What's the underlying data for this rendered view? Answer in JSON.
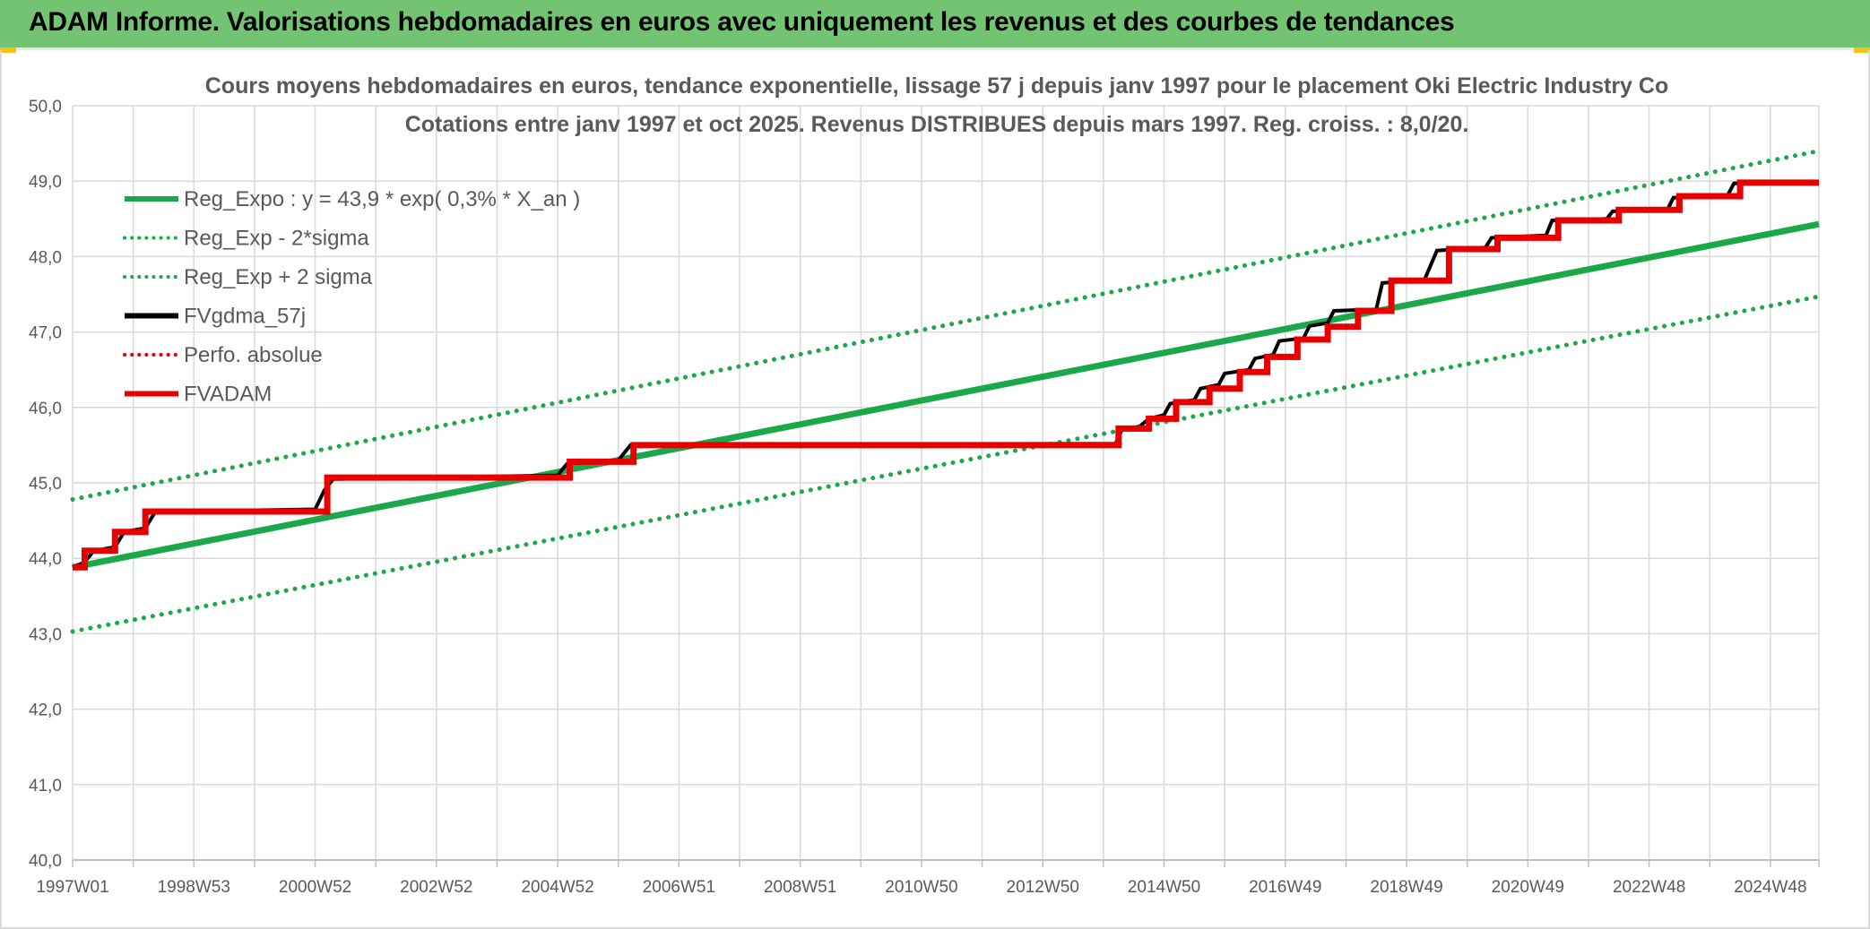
{
  "header": {
    "title": "ADAM Informe. Valorisations hebdomadaires en euros avec uniquement les revenus et des courbes de tendances"
  },
  "colors": {
    "banner": "#72c472",
    "reg_expo": "#1aa84a",
    "sigma_bands": "#1aa84a",
    "fvgdma": "#000000",
    "perfo": "#e00000",
    "fvadam": "#e80000",
    "grid": "#d9d9d9"
  },
  "chart_data": {
    "type": "line",
    "title": "Cours moyens hebdomadaires en euros, tendance exponentielle, lissage 57 j depuis janv 1997 pour le placement Oki Electric Industry Co",
    "subtitle": "Cotations entre janv 1997 et oct 2025. Revenus DISTRIBUES depuis mars 1997. Reg. croiss. : 8,0/20.",
    "xlabel": "",
    "ylabel": "",
    "x_range": [
      1997.0,
      2025.8
    ],
    "ylim": [
      40.0,
      50.0
    ],
    "y_ticks": [
      "40,0",
      "41,0",
      "42,0",
      "43,0",
      "44,0",
      "45,0",
      "46,0",
      "47,0",
      "48,0",
      "49,0",
      "50,0"
    ],
    "x_tick_labels": [
      {
        "label": "1997W01",
        "x": 1997.0
      },
      {
        "label": "1998W53",
        "x": 1999.0
      },
      {
        "label": "2000W52",
        "x": 2001.0
      },
      {
        "label": "2002W52",
        "x": 2003.0
      },
      {
        "label": "2004W52",
        "x": 2005.0
      },
      {
        "label": "2006W51",
        "x": 2007.0
      },
      {
        "label": "2008W51",
        "x": 2009.0
      },
      {
        "label": "2010W50",
        "x": 2011.0
      },
      {
        "label": "2012W50",
        "x": 2013.0
      },
      {
        "label": "2014W50",
        "x": 2015.0
      },
      {
        "label": "2016W49",
        "x": 2017.0
      },
      {
        "label": "2018W49",
        "x": 2019.0
      },
      {
        "label": "2020W49",
        "x": 2021.0
      },
      {
        "label": "2022W48",
        "x": 2023.0
      },
      {
        "label": "2024W48",
        "x": 2025.0
      }
    ],
    "grid": true,
    "legend_position": "top-left",
    "series": [
      {
        "name": "Reg_Expo : y = 43,9 * exp( 0,3% *  X_an )",
        "style": "solid-thick",
        "color": "#1aa84a",
        "points": [
          [
            1997.0,
            43.88
          ],
          [
            2025.8,
            48.43
          ]
        ]
      },
      {
        "name": "Reg_Exp - 2*sigma",
        "style": "dotted",
        "color": "#1aa84a",
        "points": [
          [
            1997.0,
            43.03
          ],
          [
            2025.8,
            47.47
          ]
        ]
      },
      {
        "name": "Reg_Exp + 2 sigma",
        "style": "dotted",
        "color": "#1aa84a",
        "points": [
          [
            1997.0,
            44.78
          ],
          [
            2025.8,
            49.4
          ]
        ]
      },
      {
        "name": "FVgdma_57j",
        "style": "solid",
        "color": "#000000",
        "points": [
          [
            1997.0,
            43.88
          ],
          [
            1997.2,
            43.95
          ],
          [
            1997.35,
            44.1
          ],
          [
            1997.7,
            44.15
          ],
          [
            1997.85,
            44.35
          ],
          [
            1998.2,
            44.4
          ],
          [
            1998.35,
            44.6
          ],
          [
            1998.6,
            44.62
          ],
          [
            2001.0,
            44.65
          ],
          [
            2001.15,
            44.9
          ],
          [
            2001.3,
            45.05
          ],
          [
            2005.0,
            45.1
          ],
          [
            2005.15,
            45.25
          ],
          [
            2006.0,
            45.3
          ],
          [
            2006.2,
            45.5
          ],
          [
            2014.2,
            45.52
          ],
          [
            2014.3,
            45.7
          ],
          [
            2014.6,
            45.75
          ],
          [
            2014.75,
            45.85
          ],
          [
            2015.0,
            45.9
          ],
          [
            2015.1,
            46.05
          ],
          [
            2015.5,
            46.1
          ],
          [
            2015.6,
            46.25
          ],
          [
            2015.9,
            46.3
          ],
          [
            2016.0,
            46.45
          ],
          [
            2016.4,
            46.5
          ],
          [
            2016.5,
            46.65
          ],
          [
            2016.8,
            46.7
          ],
          [
            2016.9,
            46.88
          ],
          [
            2017.3,
            46.92
          ],
          [
            2017.4,
            47.08
          ],
          [
            2017.7,
            47.12
          ],
          [
            2017.8,
            47.28
          ],
          [
            2018.5,
            47.3
          ],
          [
            2018.6,
            47.65
          ],
          [
            2019.3,
            47.7
          ],
          [
            2019.5,
            48.08
          ],
          [
            2020.3,
            48.12
          ],
          [
            2020.4,
            48.25
          ],
          [
            2021.3,
            48.28
          ],
          [
            2021.4,
            48.48
          ],
          [
            2022.3,
            48.5
          ],
          [
            2022.4,
            48.6
          ],
          [
            2023.3,
            48.62
          ],
          [
            2023.4,
            48.78
          ],
          [
            2024.3,
            48.82
          ],
          [
            2024.4,
            48.97
          ],
          [
            2025.0,
            48.99
          ]
        ]
      },
      {
        "name": "Perfo. absolue",
        "style": "dotted",
        "color": "#e00000",
        "points": []
      },
      {
        "name": "FVADAM",
        "style": "step-thick",
        "color": "#e80000",
        "points": [
          [
            1997.0,
            43.88
          ],
          [
            1997.2,
            43.88
          ],
          [
            1997.2,
            44.1
          ],
          [
            1997.7,
            44.1
          ],
          [
            1997.7,
            44.35
          ],
          [
            1998.2,
            44.35
          ],
          [
            1998.2,
            44.62
          ],
          [
            2001.2,
            44.62
          ],
          [
            2001.2,
            45.07
          ],
          [
            2005.2,
            45.07
          ],
          [
            2005.2,
            45.28
          ],
          [
            2006.25,
            45.28
          ],
          [
            2006.25,
            45.5
          ],
          [
            2014.25,
            45.5
          ],
          [
            2014.25,
            45.72
          ],
          [
            2014.75,
            45.72
          ],
          [
            2014.75,
            45.85
          ],
          [
            2015.2,
            45.85
          ],
          [
            2015.2,
            46.07
          ],
          [
            2015.75,
            46.07
          ],
          [
            2015.75,
            46.25
          ],
          [
            2016.25,
            46.25
          ],
          [
            2016.25,
            46.47
          ],
          [
            2016.7,
            46.47
          ],
          [
            2016.7,
            46.67
          ],
          [
            2017.2,
            46.67
          ],
          [
            2017.2,
            46.9
          ],
          [
            2017.7,
            46.9
          ],
          [
            2017.7,
            47.07
          ],
          [
            2018.2,
            47.07
          ],
          [
            2018.2,
            47.28
          ],
          [
            2018.75,
            47.28
          ],
          [
            2018.75,
            47.68
          ],
          [
            2019.7,
            47.68
          ],
          [
            2019.7,
            48.1
          ],
          [
            2020.5,
            48.1
          ],
          [
            2020.5,
            48.25
          ],
          [
            2021.5,
            48.25
          ],
          [
            2021.5,
            48.48
          ],
          [
            2022.5,
            48.48
          ],
          [
            2022.5,
            48.62
          ],
          [
            2023.5,
            48.62
          ],
          [
            2023.5,
            48.8
          ],
          [
            2024.5,
            48.8
          ],
          [
            2024.5,
            48.98
          ],
          [
            2025.8,
            48.98
          ]
        ]
      }
    ]
  }
}
